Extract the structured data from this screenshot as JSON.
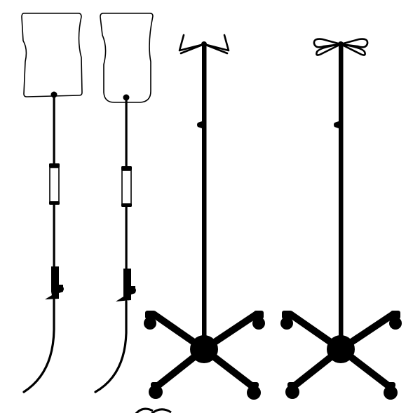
{
  "illustration": {
    "items": [
      {
        "kind": "iv-bag-with-drip-line",
        "icon": "iv-bag-icon",
        "variant": "rectangular-bag"
      },
      {
        "kind": "iv-bag-with-drip-line",
        "icon": "iv-bag-icon",
        "variant": "rounded-bag"
      },
      {
        "kind": "iv-stand",
        "icon": "iv-stand-icon",
        "variant": "angular-hooks"
      },
      {
        "kind": "iv-stand",
        "icon": "iv-stand-icon",
        "variant": "looped-hooks"
      }
    ],
    "colors": {
      "ink": "#000000",
      "background": "#ffffff"
    }
  }
}
